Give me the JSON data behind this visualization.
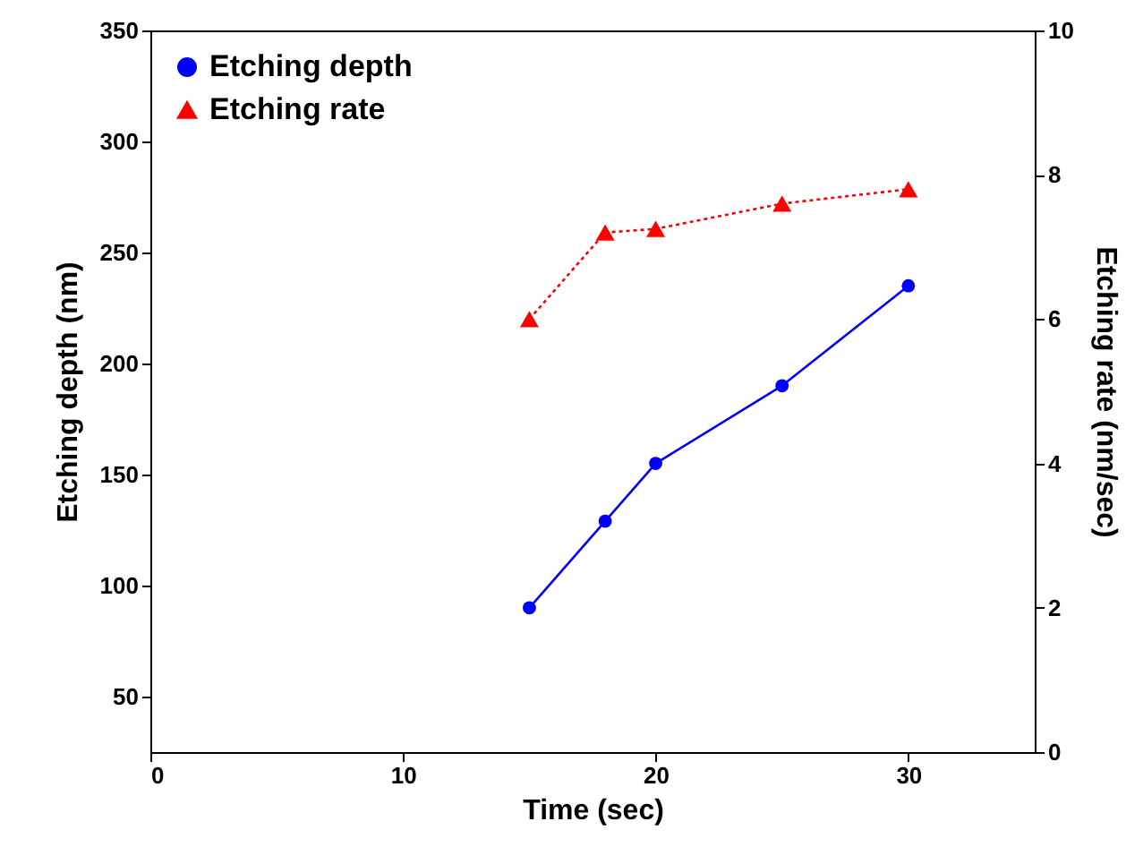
{
  "chart_data": {
    "type": "line",
    "xlabel": "Time (sec)",
    "ylabel": "Etching depth (nm)",
    "y2label": "Etching rate (nm/sec)",
    "x": [
      15,
      18,
      20,
      25,
      30
    ],
    "xlim": [
      0,
      35
    ],
    "xticks": [
      0,
      10,
      20,
      30
    ],
    "ylim": [
      25,
      350
    ],
    "yticks": [
      50,
      100,
      150,
      200,
      250,
      300,
      350
    ],
    "y2lim": [
      0,
      10
    ],
    "y2ticks": [
      0,
      2,
      4,
      6,
      8,
      10
    ],
    "legend": "top left",
    "series": [
      {
        "name": "Etching depth",
        "color": "#0000ff",
        "values": [
          90,
          129,
          155,
          190,
          235
        ],
        "marker": "circle",
        "line_style": "solid"
      },
      {
        "name": "Etching rate",
        "color": "#ff0000",
        "values": [
          6.0,
          7.2,
          7.25,
          7.6,
          7.8
        ],
        "marker": "triangle",
        "line_style": "dotted",
        "axis": "y2"
      }
    ]
  }
}
